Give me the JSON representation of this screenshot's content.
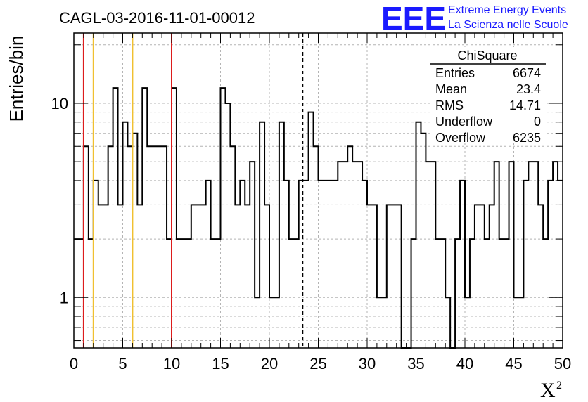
{
  "chart_data": {
    "type": "histogram",
    "title": "CAGL-03-2016-11-01-00012",
    "xlabel": "X",
    "xlabel_superscript": "2",
    "ylabel": "Entries/bin",
    "xlim": [
      0,
      50
    ],
    "ylim": [
      0.55,
      23
    ],
    "yscale": "log",
    "grid": true,
    "bin_width": 0.5,
    "x_ticks": [
      "0",
      "5",
      "10",
      "15",
      "20",
      "25",
      "30",
      "35",
      "40",
      "45",
      "50"
    ],
    "y_ticks": [
      {
        "value": 1,
        "label": "1"
      },
      {
        "value": 10,
        "label": "10"
      }
    ],
    "counts": [
      2,
      2,
      6,
      2,
      4,
      3,
      3,
      6,
      12,
      3,
      8,
      6,
      7,
      3,
      12,
      6,
      6,
      6,
      6,
      2,
      12,
      2,
      2,
      2,
      3,
      3,
      3,
      4,
      2,
      2,
      12,
      10,
      6,
      3,
      4,
      3,
      5,
      1,
      8,
      3,
      1,
      1,
      8,
      4,
      2,
      2,
      4,
      4,
      9,
      6,
      4,
      4,
      4,
      4,
      5,
      5,
      6,
      5,
      5,
      4,
      3,
      3,
      1,
      1,
      3,
      3,
      3,
      0,
      0,
      2,
      8,
      7,
      5,
      5,
      2,
      2,
      1,
      0,
      2,
      4,
      1,
      2,
      3,
      3,
      2,
      3,
      5,
      2,
      2,
      5,
      1,
      1,
      4,
      5,
      5,
      3,
      2,
      4,
      5,
      4
    ],
    "vertical_lines": [
      {
        "x": 1,
        "color": "#dd1c1c",
        "style": "solid"
      },
      {
        "x": 2,
        "color": "#f0c030",
        "style": "solid"
      },
      {
        "x": 6,
        "color": "#f0c030",
        "style": "solid"
      },
      {
        "x": 10,
        "color": "#dd1c1c",
        "style": "solid"
      },
      {
        "x": 23.4,
        "color": "#000000",
        "style": "dashed"
      }
    ],
    "stats_box": {
      "title": "ChiSquare",
      "rows": [
        {
          "label": "Entries",
          "value": "6674"
        },
        {
          "label": "Mean",
          "value": "23.4"
        },
        {
          "label": "RMS",
          "value": "14.71"
        },
        {
          "label": "Underflow",
          "value": "0"
        },
        {
          "label": "Overflow",
          "value": "6235"
        }
      ]
    }
  },
  "logo": {
    "mark": "EEE",
    "line1": "Extreme Energy Events",
    "line2": "La Scienza nelle Scuole",
    "color": "#1a1aff"
  }
}
